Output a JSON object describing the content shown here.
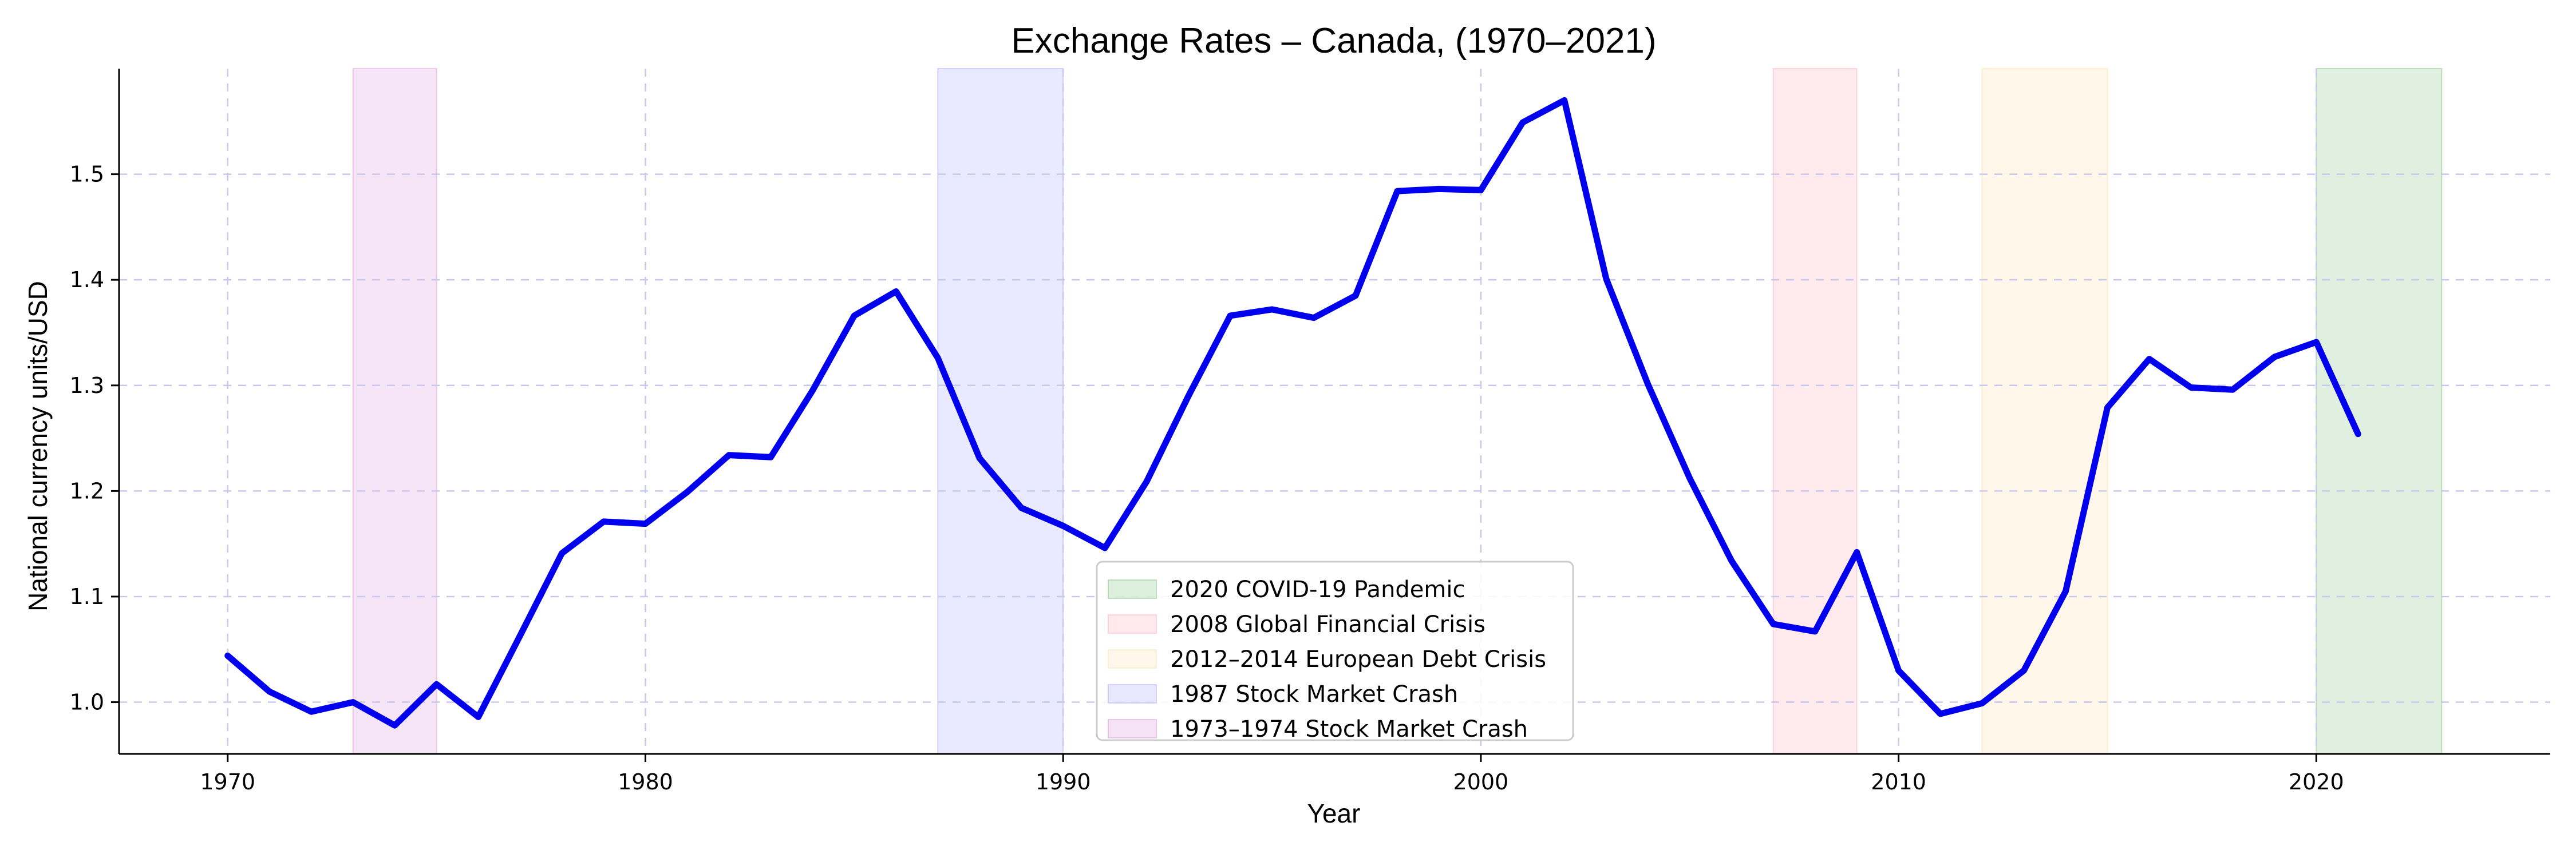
{
  "chart_data": {
    "type": "line",
    "title": "Exchange Rates – Canada, (1970–2021)",
    "xlabel": "Year",
    "ylabel": "National currency units/USD",
    "xlim": [
      1967.4,
      2025.6
    ],
    "ylim": [
      0.951,
      1.6
    ],
    "xticks": [
      1970,
      1980,
      1990,
      2000,
      2010,
      2020
    ],
    "yticks": [
      1.0,
      1.1,
      1.2,
      1.3,
      1.4,
      1.5
    ],
    "ytick_labels": [
      "1.0",
      "1.1",
      "1.2",
      "1.3",
      "1.4",
      "1.5"
    ],
    "grid": true,
    "legend_position": "lower-center",
    "line_color": "#0000ee",
    "series": [
      {
        "x": [
          1970,
          1971,
          1972,
          1973,
          1974,
          1975,
          1976,
          1977,
          1978,
          1979,
          1980,
          1981,
          1982,
          1983,
          1984,
          1985,
          1986,
          1987,
          1988,
          1989,
          1990,
          1991,
          1992,
          1993,
          1994,
          1995,
          1996,
          1997,
          1998,
          1999,
          2000,
          2001,
          2002,
          2003,
          2004,
          2005,
          2006,
          2007,
          2008,
          2009,
          2010,
          2011,
          2012,
          2013,
          2014,
          2015,
          2016,
          2017,
          2018,
          2019,
          2020,
          2021
        ],
        "values": [
          1.044,
          1.01,
          0.991,
          1.0,
          0.978,
          1.017,
          0.986,
          1.063,
          1.141,
          1.171,
          1.169,
          1.199,
          1.234,
          1.232,
          1.295,
          1.366,
          1.389,
          1.326,
          1.231,
          1.184,
          1.167,
          1.146,
          1.209,
          1.29,
          1.366,
          1.372,
          1.364,
          1.385,
          1.484,
          1.486,
          1.485,
          1.549,
          1.57,
          1.401,
          1.301,
          1.212,
          1.134,
          1.074,
          1.067,
          1.142,
          1.03,
          0.989,
          0.999,
          1.03,
          1.105,
          1.279,
          1.325,
          1.298,
          1.296,
          1.327,
          1.341,
          1.254
        ]
      }
    ],
    "shaded_regions": [
      {
        "label": "2020 COVID-19 Pandemic",
        "start": 2020,
        "end": 2023,
        "color": "#8fc98f"
      },
      {
        "label": "2008 Global Financial Crisis",
        "start": 2007,
        "end": 2009,
        "color": "#ffb6c1"
      },
      {
        "label": "2012–2014 European Debt Crisis",
        "start": 2012,
        "end": 2015,
        "color": "#ffe4b5"
      },
      {
        "label": "1987 Stock Market Crash",
        "start": 1987,
        "end": 1990,
        "color": "#b0b0ff"
      },
      {
        "label": "1973–1974 Stock Market Crash",
        "start": 1973,
        "end": 1975,
        "color": "#dda0dd"
      }
    ]
  }
}
